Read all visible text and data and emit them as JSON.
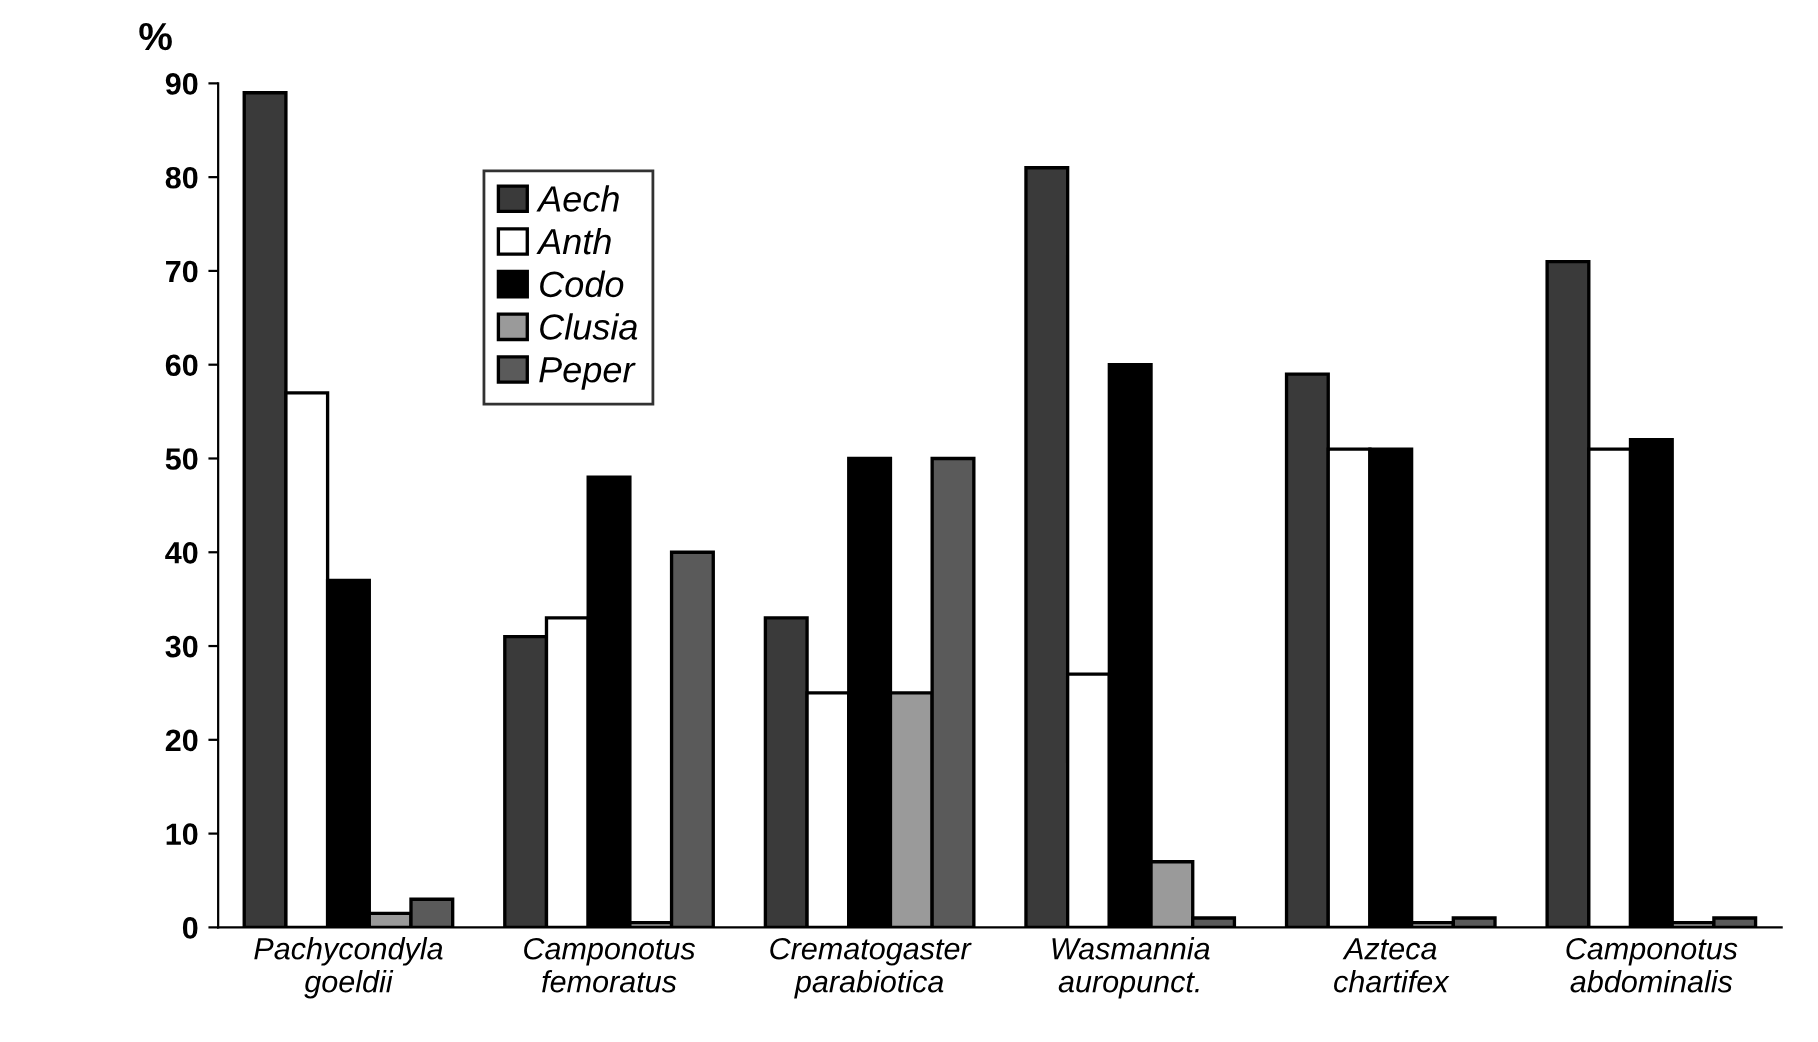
{
  "chart_data": {
    "type": "bar",
    "ylabel": "%",
    "categories": [
      "Pachycondyla\ngoeldii",
      "Camponotus\nfemoratus",
      "Crematogaster\nparabiotica",
      "Wasmannia\nauropunct.",
      "Azteca\nchartifex",
      "Camponotus\nabdominalis"
    ],
    "series": [
      {
        "name": "Aech",
        "color": "#3a3a3a",
        "values": [
          89,
          31,
          33,
          81,
          59,
          71
        ]
      },
      {
        "name": "Anth",
        "color": "#ffffff",
        "values": [
          57,
          33,
          25,
          27,
          51,
          51
        ]
      },
      {
        "name": "Codo",
        "color": "#000000",
        "values": [
          37,
          48,
          50,
          60,
          51,
          52
        ]
      },
      {
        "name": "Clusia",
        "color": "#9a9a9a",
        "values": [
          1.5,
          0.5,
          25,
          7,
          0.5,
          0.5
        ]
      },
      {
        "name": "Peper",
        "color": "#5a5a5a",
        "values": [
          3,
          40,
          50,
          1,
          1,
          1
        ]
      }
    ],
    "ylim": [
      0,
      90
    ],
    "yticks": [
      0,
      10,
      20,
      30,
      40,
      50,
      60,
      70,
      80,
      90
    ],
    "grid": false,
    "legend": "top left"
  }
}
